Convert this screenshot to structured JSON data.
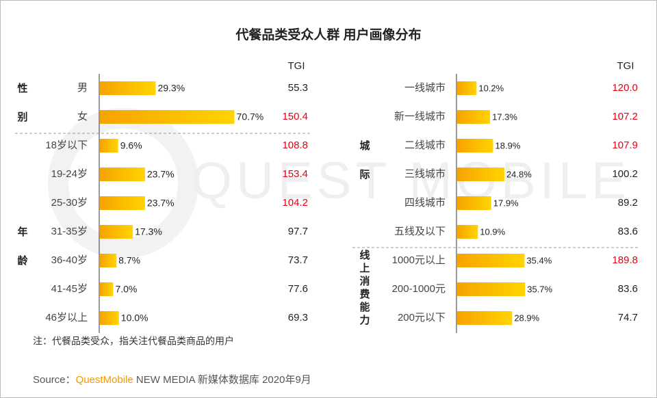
{
  "title": "代餐品类受众人群 用户画像分布",
  "watermark": "QUEST MOBILE",
  "note": "注：代餐品类受众，指关注代餐品类商品的用户",
  "source": {
    "prefix": "Source：",
    "brand": "QuestMobile",
    "rest": " NEW MEDIA 新媒体数据库 2020年9月"
  },
  "chart_data": [
    {
      "type": "bar",
      "tgi_header": "TGI",
      "bar_colors": [
        "#f6a300",
        "#ffd400"
      ],
      "tgi_color": "#222222",
      "tgi_highlight_color": "#e60012",
      "groups": [
        {
          "label": "性别",
          "categories": [
            "男",
            "女"
          ],
          "values": [
            29.3,
            70.7
          ],
          "value_labels": [
            "29.3%",
            "70.7%"
          ],
          "tgi": [
            "55.3",
            "150.4"
          ],
          "tgi_highlight": [
            false,
            true
          ]
        },
        {
          "label": "年龄",
          "categories": [
            "18岁以下",
            "19-24岁",
            "25-30岁",
            "31-35岁",
            "36-40岁",
            "41-45岁",
            "46岁以上"
          ],
          "values": [
            9.6,
            23.7,
            23.7,
            17.3,
            8.7,
            7.0,
            10.0
          ],
          "value_labels": [
            "9.6%",
            "23.7%",
            "23.7%",
            "17.3%",
            "8.7%",
            "7.0%",
            "10.0%"
          ],
          "tgi": [
            "108.8",
            "153.4",
            "104.2",
            "97.7",
            "73.7",
            "77.6",
            "69.3"
          ],
          "tgi_highlight": [
            true,
            true,
            true,
            false,
            false,
            false,
            false
          ]
        }
      ]
    },
    {
      "type": "bar",
      "tgi_header": "TGI",
      "bar_colors": [
        "#f6a300",
        "#ffd400"
      ],
      "tgi_color": "#222222",
      "tgi_highlight_color": "#e60012",
      "groups": [
        {
          "label": "城际",
          "categories": [
            "一线城市",
            "新一线城市",
            "二线城市",
            "三线城市",
            "四线城市",
            "五线及以下"
          ],
          "values": [
            10.2,
            17.3,
            18.9,
            24.8,
            17.9,
            10.9
          ],
          "value_labels": [
            "10.2%",
            "17.3%",
            "18.9%",
            "24.8%",
            "17.9%",
            "10.9%"
          ],
          "tgi": [
            "120.0",
            "107.2",
            "107.9",
            "100.2",
            "89.2",
            "83.6"
          ],
          "tgi_highlight": [
            true,
            true,
            true,
            false,
            false,
            false
          ]
        },
        {
          "label": "线上消费能力",
          "categories": [
            "1000元以上",
            "200-1000元",
            "200元以下"
          ],
          "values": [
            35.4,
            35.7,
            28.9
          ],
          "value_labels": [
            "35.4%",
            "35.7%",
            "28.9%"
          ],
          "tgi": [
            "189.8",
            "83.6",
            "74.7"
          ],
          "tgi_highlight": [
            true,
            false,
            false
          ]
        }
      ]
    }
  ]
}
